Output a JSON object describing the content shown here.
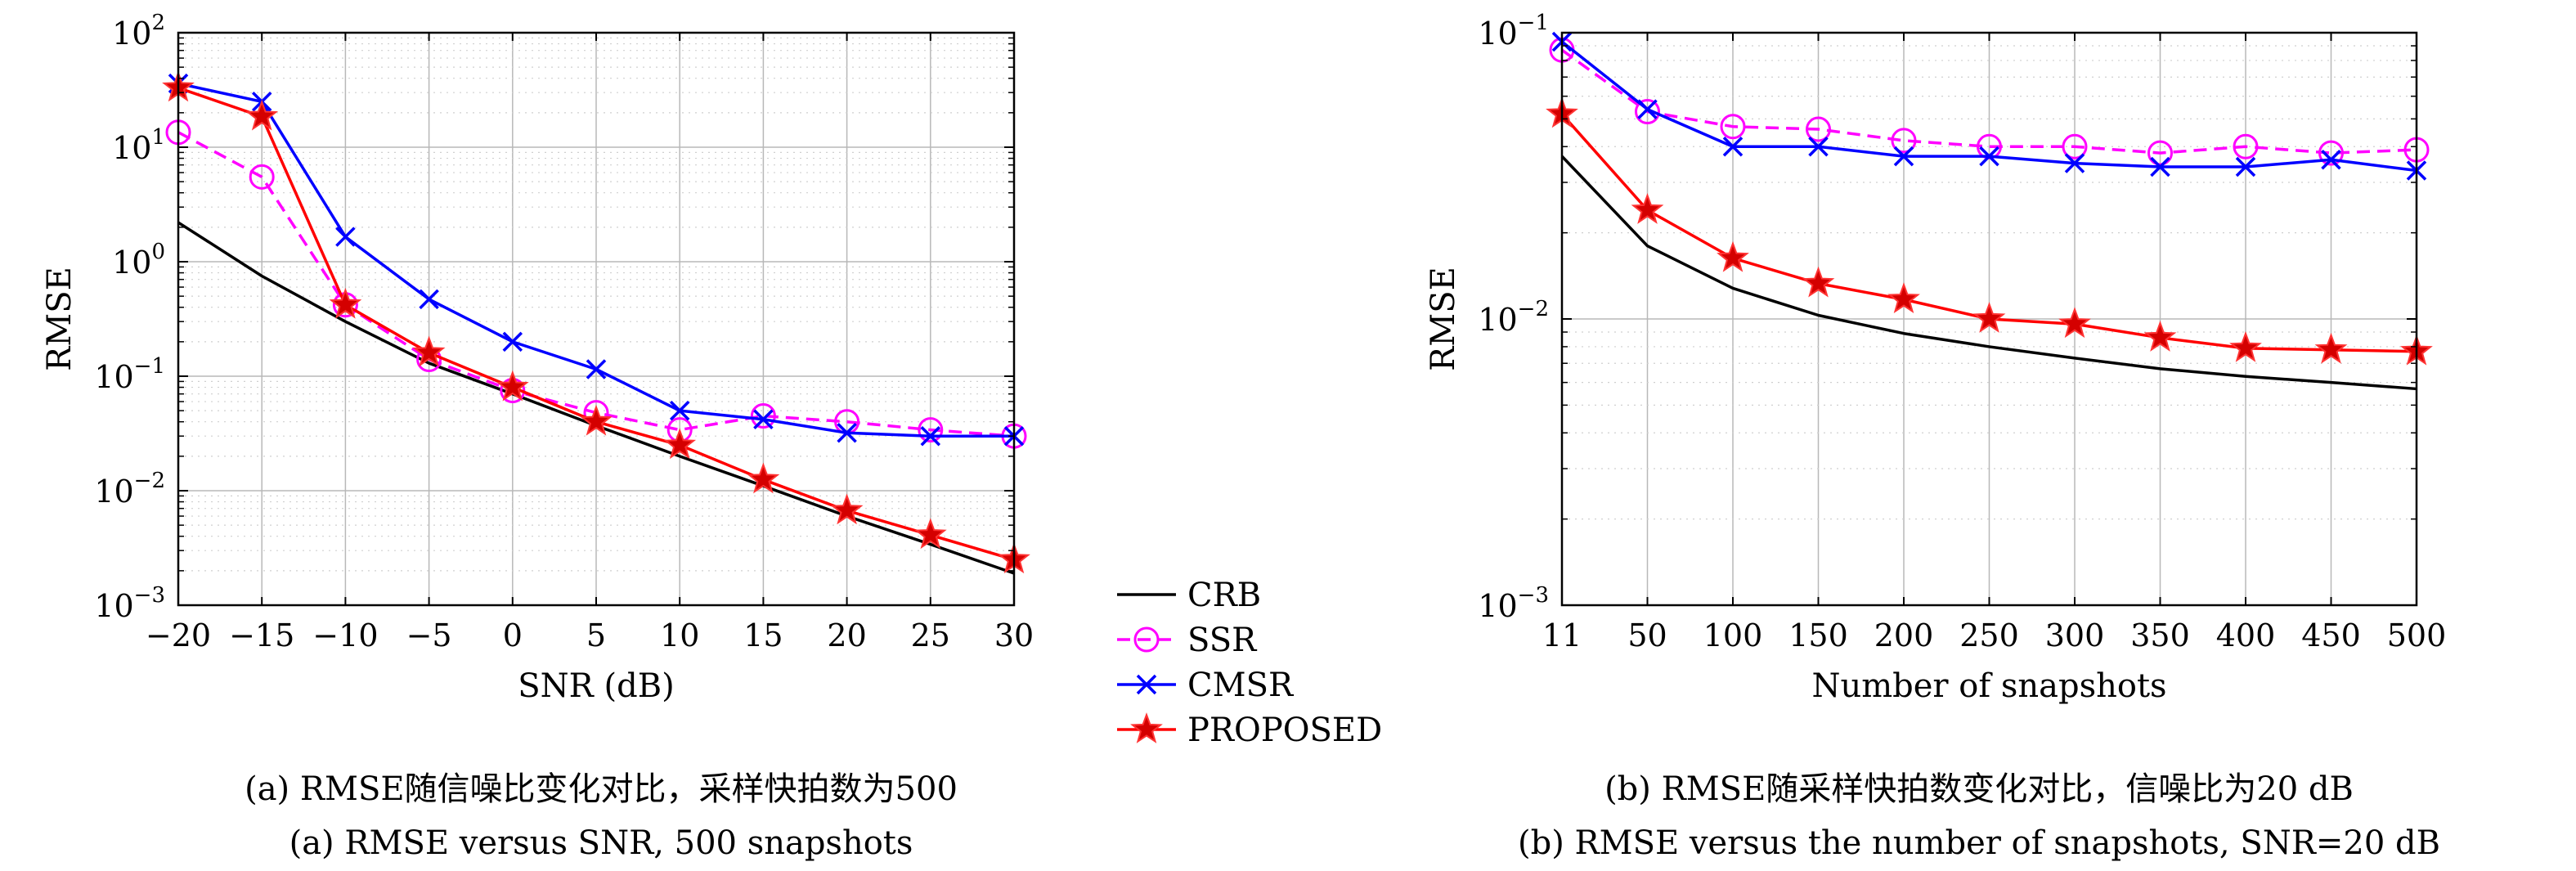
{
  "legend": {
    "entries": [
      {
        "label": "CRB",
        "color": "#000000",
        "marker": "none",
        "dash": false
      },
      {
        "label": "SSR",
        "color": "#ff00ff",
        "marker": "circle",
        "dash": true
      },
      {
        "label": "CMSR",
        "color": "#0000ff",
        "marker": "x",
        "dash": false
      },
      {
        "label": "PROPOSED",
        "color": "#ff0000",
        "marker": "star",
        "dash": false
      }
    ]
  },
  "chart_data": [
    {
      "type": "line",
      "yscale": "log",
      "xlabel": "SNR (dB)",
      "ylabel": "RMSE",
      "caption_cn": "(a) RMSE随信噪比变化对比，采样快拍数为500",
      "caption_en": "(a) RMSE versus SNR, 500 snapshots",
      "x": [
        -20,
        -15,
        -10,
        -5,
        0,
        5,
        10,
        15,
        20,
        25,
        30
      ],
      "x_tick_labels": [
        "−20",
        "−15",
        "−10",
        "−5",
        "0",
        "5",
        "10",
        "15",
        "20",
        "25",
        "30"
      ],
      "y_ticks": [
        {
          "base": "10",
          "exp": "−3"
        },
        {
          "base": "10",
          "exp": "−2"
        },
        {
          "base": "10",
          "exp": "−1"
        },
        {
          "base": "10",
          "exp": "0"
        },
        {
          "base": "10",
          "exp": "1"
        },
        {
          "base": "10",
          "exp": "2"
        }
      ],
      "ylim": [
        0.001,
        100
      ],
      "grid": true,
      "series": [
        {
          "name": "CRB",
          "values": [
            2.2,
            0.75,
            0.3,
            0.13,
            0.07,
            0.037,
            0.02,
            0.011,
            0.006,
            0.0034,
            0.0019
          ]
        },
        {
          "name": "SSR",
          "values": [
            13.5,
            5.5,
            0.42,
            0.14,
            0.075,
            0.048,
            0.034,
            0.045,
            0.04,
            0.034,
            0.03
          ]
        },
        {
          "name": "CMSR",
          "values": [
            36,
            25,
            1.65,
            0.47,
            0.2,
            0.115,
            0.05,
            0.042,
            0.032,
            0.03,
            0.03
          ]
        },
        {
          "name": "PROPOSED",
          "values": [
            33,
            18.5,
            0.42,
            0.16,
            0.08,
            0.04,
            0.025,
            0.0125,
            0.0067,
            0.0041,
            0.0025
          ]
        }
      ]
    },
    {
      "type": "line",
      "yscale": "log",
      "xlabel": "Number of snapshots",
      "ylabel": "RMSE",
      "caption_cn": "(b) RMSE随采样快拍数变化对比，信噪比为20 dB",
      "caption_en": "(b) RMSE versus the number of snapshots, SNR=20 dB",
      "categories": [
        "11",
        "50",
        "100",
        "150",
        "200",
        "250",
        "300",
        "350",
        "400",
        "450",
        "500"
      ],
      "y_ticks": [
        {
          "base": "10",
          "exp": "−3"
        },
        {
          "base": "10",
          "exp": "−2"
        },
        {
          "base": "10",
          "exp": "−1"
        }
      ],
      "ylim": [
        0.001,
        0.1
      ],
      "grid": true,
      "series": [
        {
          "name": "CRB",
          "values": [
            0.037,
            0.018,
            0.0128,
            0.0103,
            0.0089,
            0.008,
            0.0073,
            0.0067,
            0.0063,
            0.006,
            0.0057
          ]
        },
        {
          "name": "SSR",
          "values": [
            0.087,
            0.053,
            0.047,
            0.046,
            0.042,
            0.04,
            0.04,
            0.038,
            0.04,
            0.038,
            0.039
          ]
        },
        {
          "name": "CMSR",
          "values": [
            0.093,
            0.054,
            0.04,
            0.04,
            0.037,
            0.037,
            0.035,
            0.034,
            0.034,
            0.036,
            0.033
          ]
        },
        {
          "name": "PROPOSED",
          "values": [
            0.052,
            0.024,
            0.0163,
            0.0133,
            0.0117,
            0.01,
            0.0096,
            0.0086,
            0.0079,
            0.0078,
            0.0077
          ]
        }
      ]
    }
  ]
}
